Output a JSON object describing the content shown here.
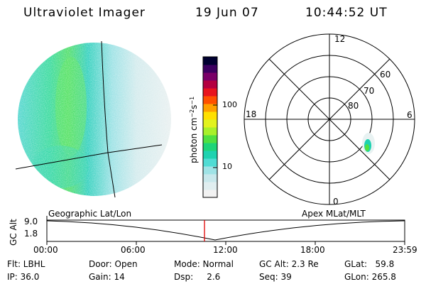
{
  "header": {
    "instrument": "Ultraviolet Imager",
    "date": "19 Jun 07",
    "time": "10:44:52 UT"
  },
  "colorbar": {
    "label": "photon cm⁻²s⁻¹",
    "ticks": [
      {
        "label": "100",
        "value": 100
      },
      {
        "label": "10",
        "value": 10
      }
    ],
    "colors": [
      "#f2f2f2",
      "#e0eef0",
      "#c8e8ec",
      "#9fe3e6",
      "#50dcd4",
      "#1ed2b0",
      "#1ed478",
      "#50e040",
      "#a8f02a",
      "#e2f21e",
      "#ffe000",
      "#ffa000",
      "#ff5000",
      "#e8141e",
      "#b40040",
      "#7a0068",
      "#3c0060",
      "#000030"
    ]
  },
  "polar_plot": {
    "mlt_labels": {
      "top": "12",
      "left": "18",
      "right": "6",
      "bottom": "0"
    },
    "mlat_labels": [
      "60",
      "70",
      "80"
    ]
  },
  "timeline": {
    "y_axis_label": "GC Alt",
    "y_ticks": [
      "9.0",
      "1.8"
    ],
    "left_caption": "Geographic Lat/Lon",
    "right_caption": "Apex MLat/MLT",
    "x_ticks": [
      "00:00",
      "06:00",
      "12:00",
      "18:00",
      "23:59"
    ]
  },
  "info": {
    "flt": "Flt: LBHL",
    "ip": "IP: 36.0",
    "door": "Door: Open",
    "gain": "Gain: 14",
    "mode": "Mode: Normal",
    "dsp": "Dsp:     2.6",
    "gc_alt": "GC Alt: 2.3 Re",
    "seq": "Seq: 39",
    "glat": "GLat:   59.8",
    "glon": "GLon: 265.8"
  }
}
